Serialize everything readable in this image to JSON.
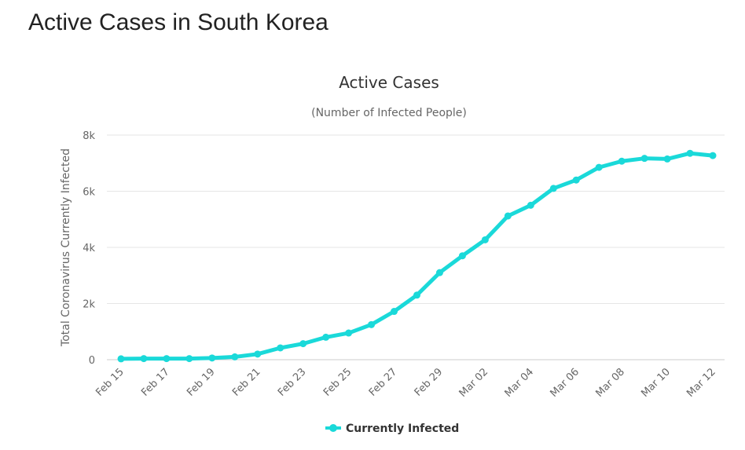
{
  "page": {
    "heading": "Active Cases in South Korea"
  },
  "chart_data": {
    "type": "line",
    "title": "Active Cases",
    "subtitle": "(Number of Infected People)",
    "xlabel": "",
    "ylabel": "Total Coronavirus Currently Infected",
    "ylim": [
      0,
      8000
    ],
    "yticks": [
      0,
      2000,
      4000,
      6000,
      8000
    ],
    "ytick_labels": [
      "0",
      "2k",
      "4k",
      "6k",
      "8k"
    ],
    "x": [
      "Feb 15",
      "Feb 16",
      "Feb 17",
      "Feb 18",
      "Feb 19",
      "Feb 20",
      "Feb 21",
      "Feb 22",
      "Feb 23",
      "Feb 24",
      "Feb 25",
      "Feb 26",
      "Feb 27",
      "Feb 28",
      "Feb 29",
      "Mar 01",
      "Mar 02",
      "Mar 03",
      "Mar 04",
      "Mar 05",
      "Mar 06",
      "Mar 07",
      "Mar 08",
      "Mar 09",
      "Mar 10",
      "Mar 11",
      "Mar 12"
    ],
    "xtick_labels": [
      "Feb 15",
      "Feb 17",
      "Feb 19",
      "Feb 21",
      "Feb 23",
      "Feb 25",
      "Feb 27",
      "Feb 29",
      "Mar 02",
      "Mar 04",
      "Mar 06",
      "Mar 08",
      "Mar 10",
      "Mar 12"
    ],
    "series": [
      {
        "name": "Currently Infected",
        "color": "#1ad9d9",
        "values": [
          30,
          40,
          40,
          40,
          60,
          100,
          200,
          420,
          570,
          800,
          950,
          1250,
          1720,
          2300,
          3100,
          3700,
          4270,
          5120,
          5500,
          6100,
          6400,
          6850,
          7070,
          7170,
          7150,
          7350,
          7270
        ]
      }
    ],
    "grid": true,
    "legend": "bottom-center"
  }
}
